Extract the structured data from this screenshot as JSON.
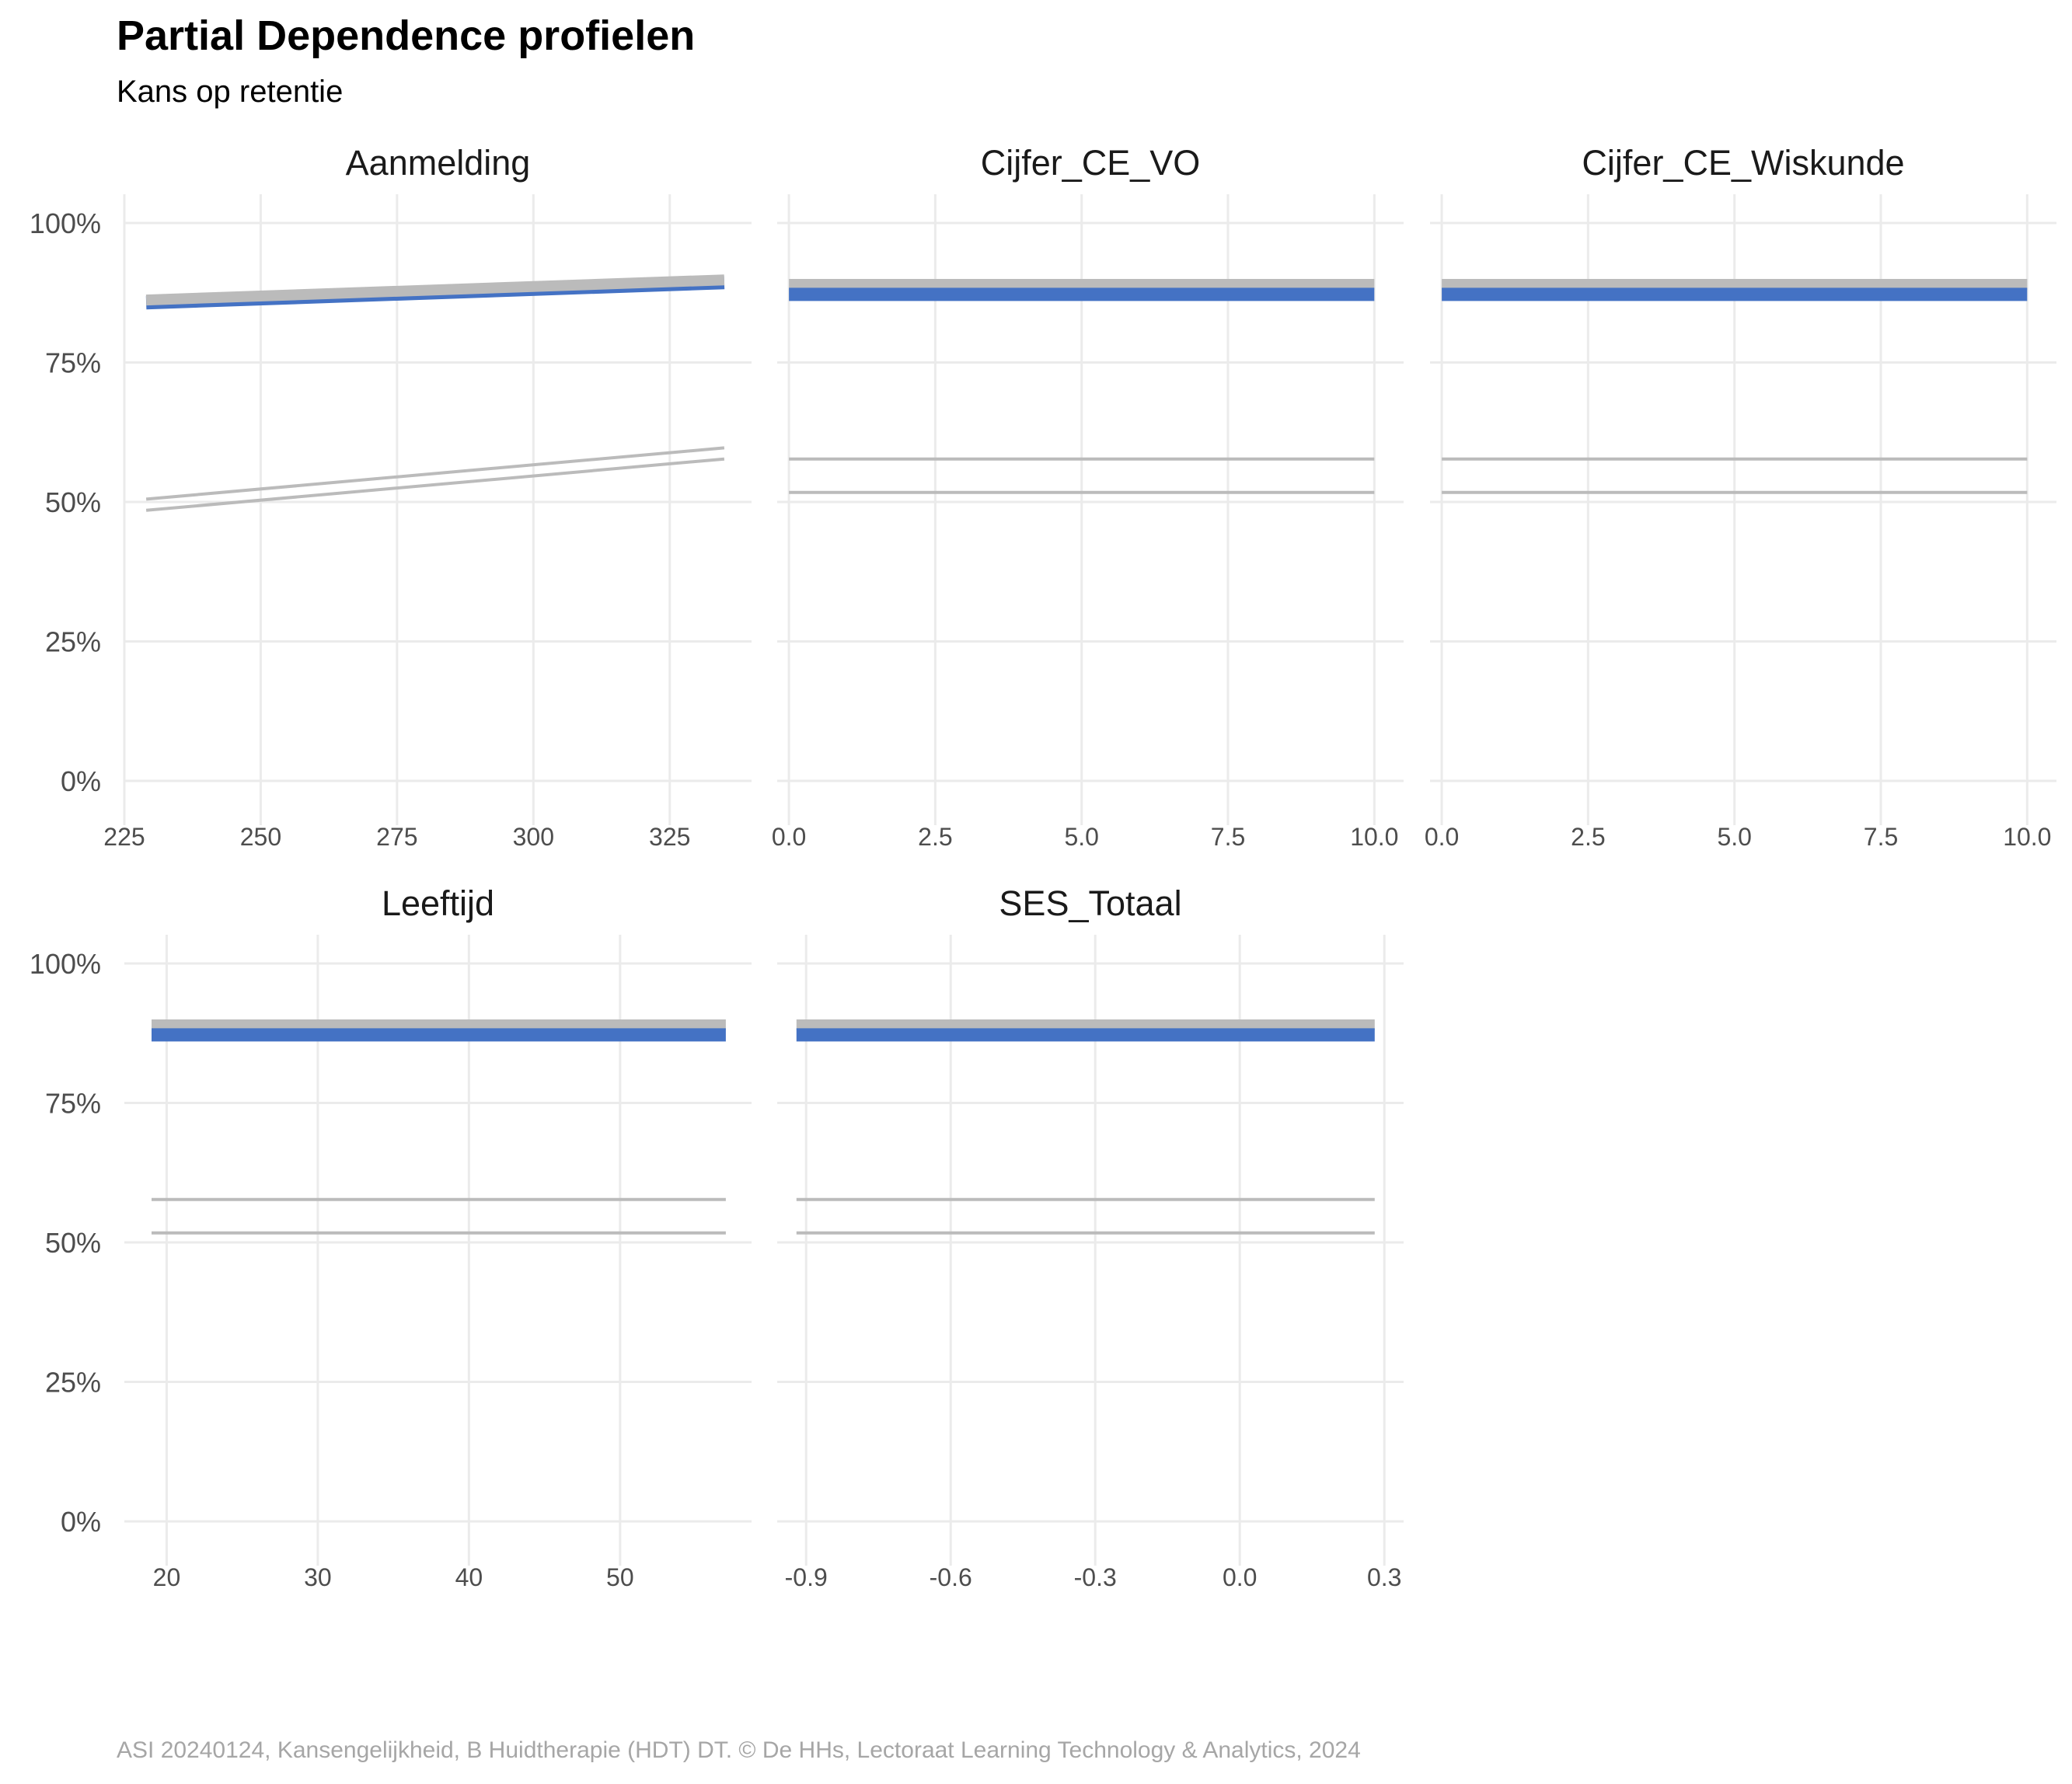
{
  "title": "Partial Dependence profielen",
  "subtitle": "Kans op retentie",
  "caption": "ASI 20240124, Kansengelijkheid, B Huidtherapie (HDT) DT. © De HHs, Lectoraat Learning Technology & Analytics, 2024",
  "colors": {
    "highlight": "#4472C4",
    "reference": "#BBBBBB",
    "grid": "#EBEBEB",
    "tick_text": "#4D4D4D",
    "caption": "#A6A6A6"
  },
  "y_axis": {
    "tick_values": [
      0,
      0.25,
      0.5,
      0.75,
      1.0
    ],
    "tick_labels": [
      "0%",
      "25%",
      "50%",
      "75%",
      "100%"
    ],
    "range": [
      0,
      1
    ]
  },
  "chart_data": [
    {
      "type": "line",
      "panel": "Aanmelding",
      "x_ticks": [
        225,
        250,
        275,
        300,
        325
      ],
      "x_tick_labels": [
        "225",
        "250",
        "275",
        "300",
        "325"
      ],
      "x_range": [
        225,
        340
      ],
      "series": [
        {
          "role": "highlight",
          "x": [
            229,
            335
          ],
          "y": [
            0.857,
            0.893
          ]
        },
        {
          "role": "reference-band",
          "x": [
            229,
            335
          ],
          "y": [
            0.862,
            0.898
          ]
        },
        {
          "role": "reference",
          "x": [
            229,
            335
          ],
          "y": [
            0.505,
            0.597
          ]
        },
        {
          "role": "reference",
          "x": [
            229,
            335
          ],
          "y": [
            0.485,
            0.577
          ]
        }
      ]
    },
    {
      "type": "line",
      "panel": "Cijfer_CE_VO",
      "x_ticks": [
        0,
        2.5,
        5,
        7.5,
        10
      ],
      "x_tick_labels": [
        "0.0",
        "2.5",
        "5.0",
        "7.5",
        "10.0"
      ],
      "x_range": [
        -0.2,
        10.5
      ],
      "series": [
        {
          "role": "reference-band",
          "x": [
            0,
            10
          ],
          "y": [
            0.89,
            0.89
          ]
        },
        {
          "role": "highlight",
          "x": [
            0,
            10
          ],
          "y": [
            0.872,
            0.872
          ]
        },
        {
          "role": "reference",
          "x": [
            0,
            10
          ],
          "y": [
            0.577,
            0.577
          ]
        },
        {
          "role": "reference",
          "x": [
            0,
            10
          ],
          "y": [
            0.517,
            0.517
          ]
        }
      ]
    },
    {
      "type": "line",
      "panel": "Cijfer_CE_Wiskunde",
      "x_ticks": [
        0,
        2.5,
        5,
        7.5,
        10
      ],
      "x_tick_labels": [
        "0.0",
        "2.5",
        "5.0",
        "7.5",
        "10.0"
      ],
      "x_range": [
        -0.2,
        10.5
      ],
      "series": [
        {
          "role": "reference-band",
          "x": [
            0,
            10
          ],
          "y": [
            0.89,
            0.89
          ]
        },
        {
          "role": "highlight",
          "x": [
            0,
            10
          ],
          "y": [
            0.872,
            0.872
          ]
        },
        {
          "role": "reference",
          "x": [
            0,
            10
          ],
          "y": [
            0.577,
            0.577
          ]
        },
        {
          "role": "reference",
          "x": [
            0,
            10
          ],
          "y": [
            0.517,
            0.517
          ]
        }
      ]
    },
    {
      "type": "line",
      "panel": "Leeftijd",
      "x_ticks": [
        20,
        30,
        40,
        50
      ],
      "x_tick_labels": [
        "20",
        "30",
        "40",
        "50"
      ],
      "x_range": [
        17.2,
        58.7
      ],
      "series": [
        {
          "role": "reference-band",
          "x": [
            19,
            57
          ],
          "y": [
            0.89,
            0.89
          ]
        },
        {
          "role": "highlight",
          "x": [
            19,
            57
          ],
          "y": [
            0.872,
            0.872
          ]
        },
        {
          "role": "reference",
          "x": [
            19,
            57
          ],
          "y": [
            0.577,
            0.577
          ]
        },
        {
          "role": "reference",
          "x": [
            19,
            57
          ],
          "y": [
            0.517,
            0.517
          ]
        }
      ]
    },
    {
      "type": "line",
      "panel": "SES_Totaal",
      "x_ticks": [
        -0.9,
        -0.6,
        -0.3,
        0.0,
        0.3
      ],
      "x_tick_labels": [
        "-0.9",
        "-0.6",
        "-0.3",
        "0.0",
        "0.3"
      ],
      "x_range": [
        -0.96,
        0.34
      ],
      "series": [
        {
          "role": "reference-band",
          "x": [
            -0.92,
            0.28
          ],
          "y": [
            0.89,
            0.89
          ]
        },
        {
          "role": "highlight",
          "x": [
            -0.92,
            0.28
          ],
          "y": [
            0.872,
            0.872
          ]
        },
        {
          "role": "reference",
          "x": [
            -0.92,
            0.28
          ],
          "y": [
            0.577,
            0.577
          ]
        },
        {
          "role": "reference",
          "x": [
            -0.92,
            0.28
          ],
          "y": [
            0.517,
            0.517
          ]
        }
      ]
    }
  ]
}
